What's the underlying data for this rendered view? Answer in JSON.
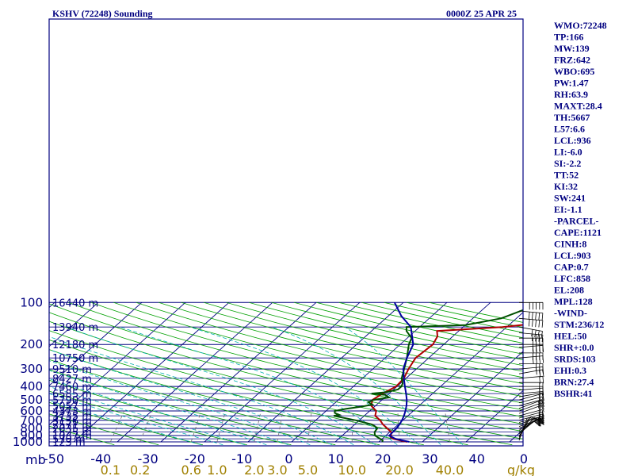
{
  "chart_data": {
    "type": "line",
    "title": "KSHV (72248) Sounding",
    "subtitle": "0000Z 25 APR 25",
    "pressure_axis_unit": "mb",
    "mixing_ratio_unit": "g/kg",
    "pressure_levels": [
      100,
      200,
      300,
      400,
      500,
      600,
      700,
      800,
      900,
      1000
    ],
    "height_labels": [
      {
        "p": 100,
        "label": "16440 m"
      },
      {
        "p": 150,
        "label": "13940 m"
      },
      {
        "p": 200,
        "label": "12180 m"
      },
      {
        "p": 250,
        "label": "10750 m"
      },
      {
        "p": 300,
        "label": "9510 m"
      },
      {
        "p": 350,
        "label": "8427 m"
      },
      {
        "p": 400,
        "label": "7460 m"
      },
      {
        "p": 450,
        "label": "6585 m"
      },
      {
        "p": 500,
        "label": "5790 m"
      },
      {
        "p": 550,
        "label": "5057 m"
      },
      {
        "p": 600,
        "label": "4373 m"
      },
      {
        "p": 650,
        "label": "3735 m"
      },
      {
        "p": 700,
        "label": "3136 m"
      },
      {
        "p": 750,
        "label": "2571 m"
      },
      {
        "p": 800,
        "label": "2035 m"
      },
      {
        "p": 850,
        "label": "1525 m"
      },
      {
        "p": 900,
        "label": "1037 m"
      },
      {
        "p": 950,
        "label": "570 m"
      },
      {
        "p": 1000,
        "label": "123 m"
      }
    ],
    "temperature_ticks": [
      "-50",
      "-40",
      "-30",
      "-20",
      "-10",
      "0",
      "10",
      "20",
      "30",
      "40",
      "0"
    ],
    "mixing_ratio_ticks": [
      "0.1",
      "0.2",
      "0.6",
      "1.0",
      "2.0",
      "3.0",
      "5.0",
      "10.0",
      "20.0",
      "40.0"
    ],
    "series": [
      {
        "id": "temperature",
        "color": "#b00000",
        "points": [
          [
            1000,
            26.5
          ],
          [
            975,
            24.5
          ],
          [
            950,
            22.5
          ],
          [
            925,
            21.5
          ],
          [
            900,
            21.2
          ],
          [
            850,
            20.3
          ],
          [
            800,
            18.5
          ],
          [
            750,
            16.5
          ],
          [
            700,
            14.8
          ],
          [
            650,
            12.5
          ],
          [
            600,
            11.5
          ],
          [
            550,
            9.0
          ],
          [
            500,
            7.8
          ],
          [
            450,
            8.5
          ],
          [
            400,
            9.8
          ],
          [
            350,
            9.5
          ],
          [
            300,
            8.2
          ],
          [
            250,
            7.0
          ],
          [
            200,
            7.5
          ],
          [
            175,
            6.5
          ],
          [
            160,
            5.0
          ],
          [
            150,
            19.0
          ],
          [
            140,
            27.0
          ],
          [
            120,
            30.5
          ],
          [
            100,
            34.0
          ]
        ]
      },
      {
        "id": "dewpoint",
        "color": "#005000",
        "points": [
          [
            1000,
            20.8
          ],
          [
            975,
            20.5
          ],
          [
            950,
            19.5
          ],
          [
            900,
            17.5
          ],
          [
            850,
            16.5
          ],
          [
            800,
            16.2
          ],
          [
            770,
            15.0
          ],
          [
            750,
            14.0
          ],
          [
            700,
            9.2
          ],
          [
            650,
            3.0
          ],
          [
            640,
            4.0
          ],
          [
            620,
            2.5
          ],
          [
            600,
            2.0
          ],
          [
            580,
            4.0
          ],
          [
            560,
            6.8
          ],
          [
            540,
            9.0
          ],
          [
            520,
            7.5
          ],
          [
            500,
            8.0
          ],
          [
            480,
            11.0
          ],
          [
            460,
            9.5
          ],
          [
            450,
            6.0
          ],
          [
            440,
            9.0
          ],
          [
            420,
            11.0
          ],
          [
            400,
            11.0
          ],
          [
            380,
            10.5
          ],
          [
            350,
            9.0
          ],
          [
            300,
            7.2
          ],
          [
            250,
            5.0
          ],
          [
            200,
            2.0
          ],
          [
            180,
            1.0
          ],
          [
            160,
            -2.0
          ],
          [
            150,
            -3.0
          ],
          [
            145,
            10.0
          ],
          [
            130,
            16.5
          ],
          [
            100,
            22.0
          ]
        ]
      },
      {
        "id": "parcel",
        "color": "#0000a0",
        "points": [
          [
            1000,
            27.0
          ],
          [
            950,
            23.0
          ],
          [
            903,
            20.8
          ],
          [
            850,
            20.7
          ],
          [
            800,
            20.6
          ],
          [
            750,
            20.3
          ],
          [
            700,
            19.8
          ],
          [
            650,
            19.1
          ],
          [
            600,
            18.2
          ],
          [
            550,
            17.1
          ],
          [
            500,
            15.7
          ],
          [
            450,
            13.9
          ],
          [
            400,
            11.8
          ],
          [
            350,
            9.5
          ],
          [
            300,
            7.0
          ],
          [
            250,
            5.0
          ],
          [
            200,
            3.0
          ],
          [
            150,
            -2.0
          ],
          [
            125,
            -7.0
          ],
          [
            100,
            -12.0
          ]
        ]
      }
    ],
    "indices": [
      "WMO:72248",
      "TP:166",
      "MW:139",
      "FRZ:642",
      "WBO:695",
      "PW:1.47",
      "RH:63.9",
      "MAXT:28.4",
      "TH:5667",
      "L57:6.6",
      "LCL:936",
      "LI:-6.0",
      "SI:-2.2",
      "TT:52",
      "KI:32",
      "SW:241",
      "EI:-1.1",
      "-PARCEL-",
      "CAPE:1121",
      "CINH:8",
      "LCL:903",
      "CAP:0.7",
      "LFC:858",
      "EL:208",
      "MPL:128",
      "-WIND-",
      "STM:236/12",
      "HEL:50",
      "SHR+:0.0",
      "SRDS:103",
      "EHI:0.3",
      "BRN:27.4",
      "BSHR:41"
    ],
    "colors": {
      "axis": "#000080",
      "isotherm": "#000080",
      "dry_adiabat": "#00a000",
      "moist_adiabat": "#00b0b0",
      "mixing_ratio": "#707070",
      "wind": "#000000"
    }
  }
}
